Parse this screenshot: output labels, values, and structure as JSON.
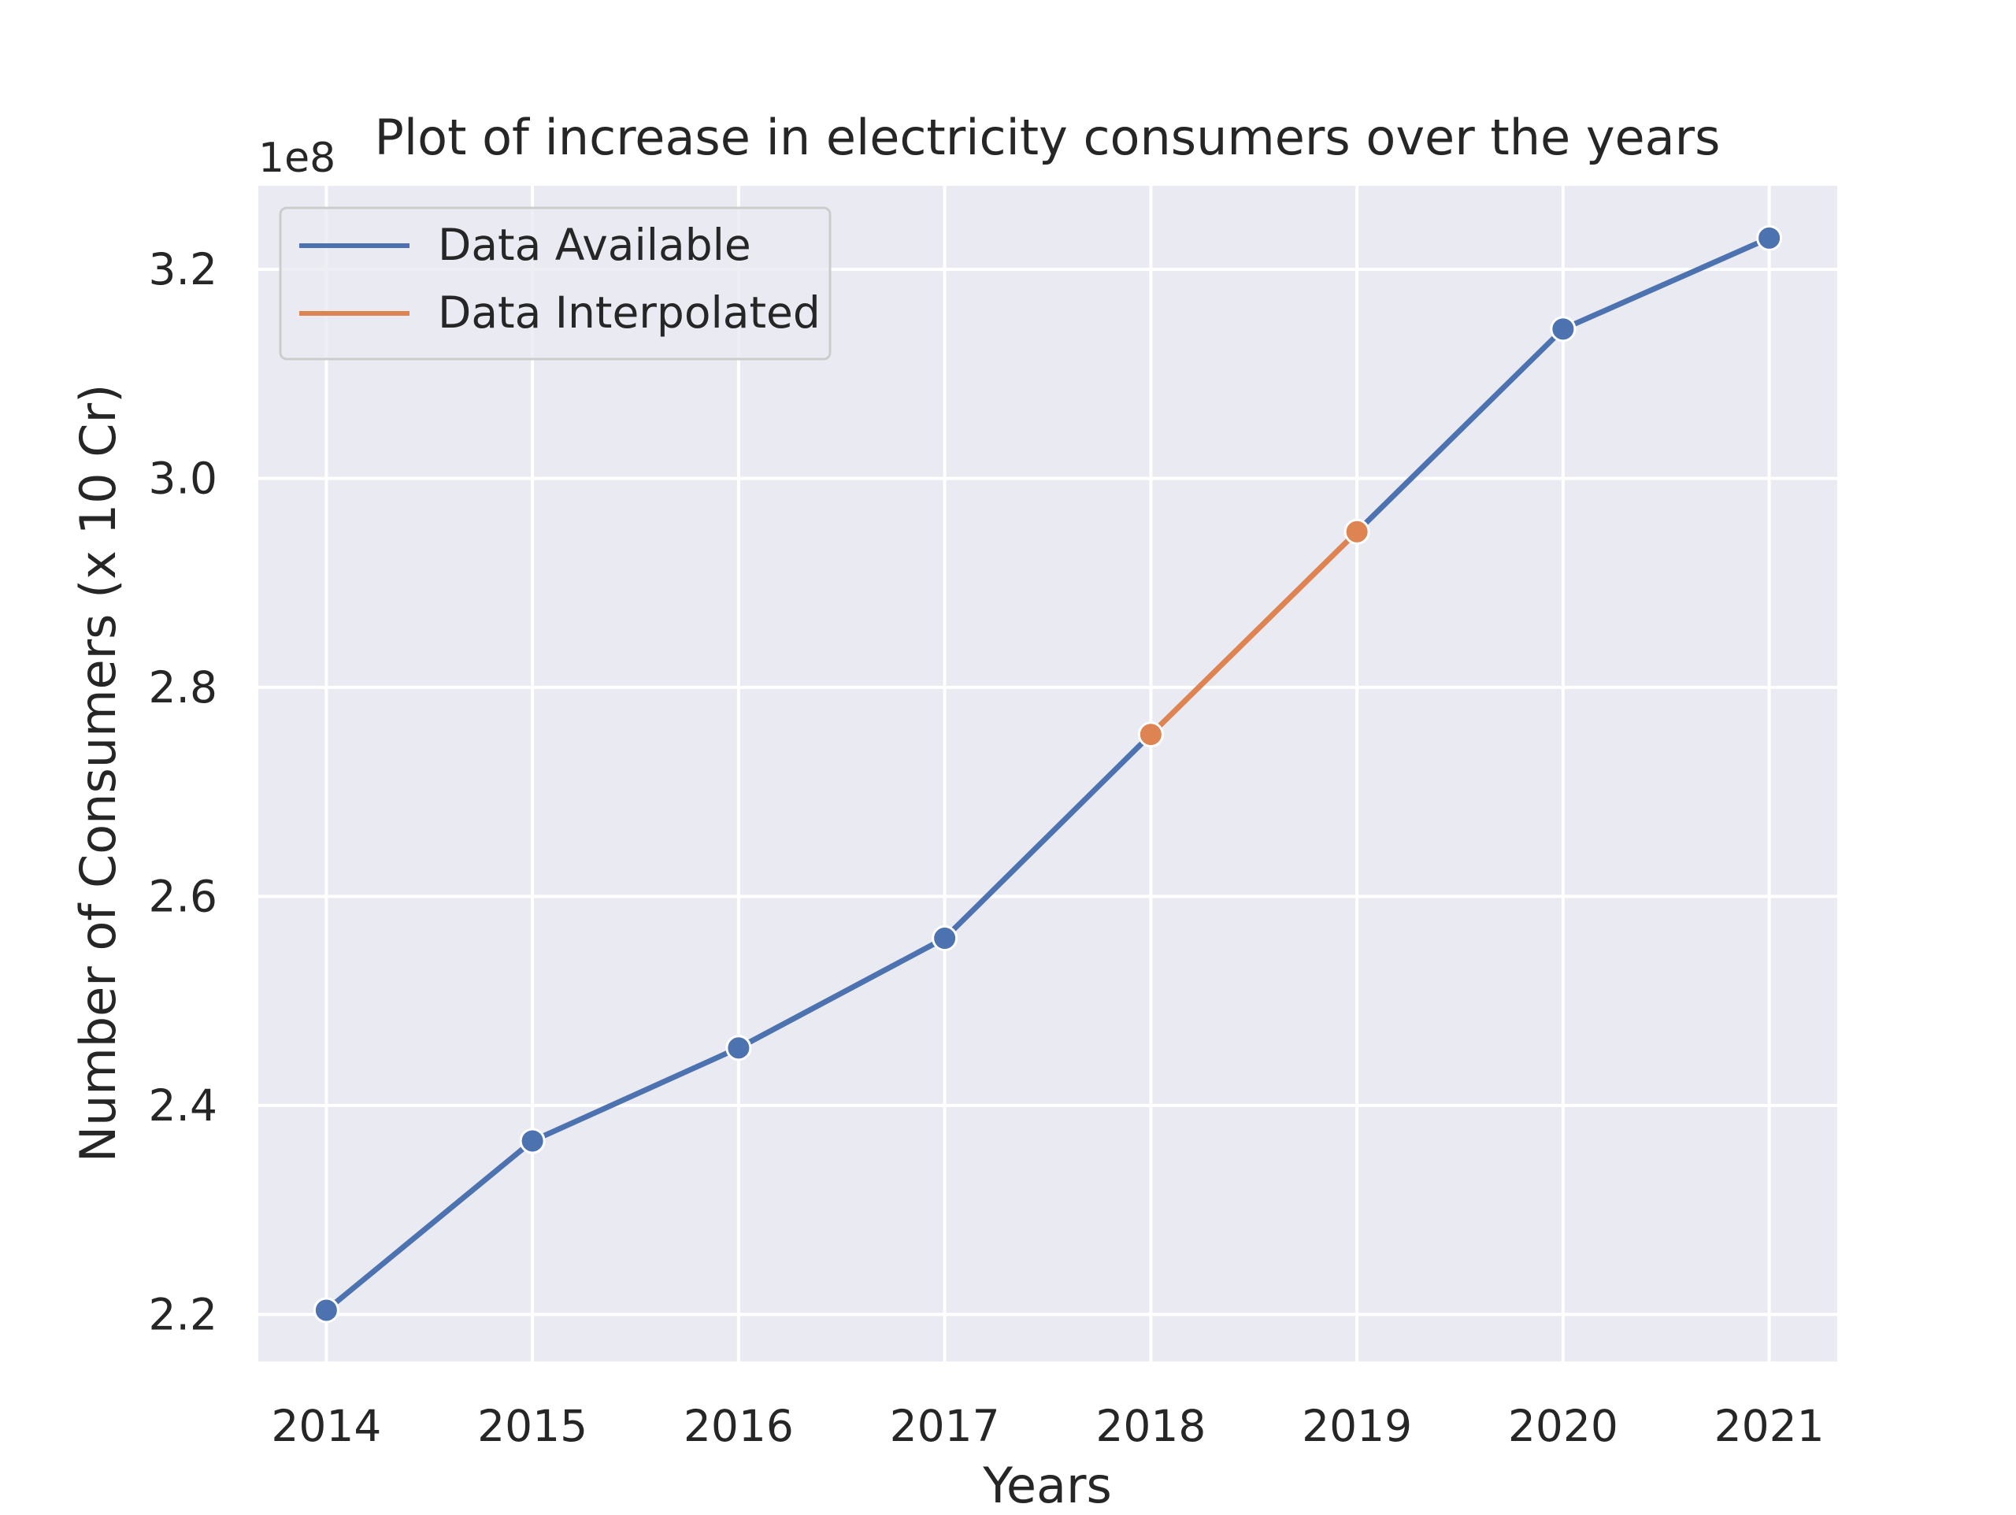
{
  "chart_data": {
    "type": "line",
    "title": "Plot of increase in electricity consumers over the years",
    "xlabel": "Years",
    "ylabel": "Number of Consumers (x 10 Cr)",
    "y_offset_text": "1e8",
    "x": [
      2014,
      2015,
      2016,
      2017,
      2018,
      2019,
      2020,
      2021
    ],
    "x_tick_labels": [
      "2014",
      "2015",
      "2016",
      "2017",
      "2018",
      "2019",
      "2020",
      "2021"
    ],
    "y_ticks": [
      2.2,
      2.4,
      2.6,
      2.8,
      3.0,
      3.2
    ],
    "y_tick_labels": [
      "2.2",
      "2.4",
      "2.6",
      "2.8",
      "3.0",
      "3.2"
    ],
    "ylim": [
      2.155,
      3.28
    ],
    "xlim": [
      2013.67,
      2021.33
    ],
    "grid": true,
    "legend_position": "top-left",
    "series": [
      {
        "name": "Data Available",
        "color": "#4C72B0",
        "segments": [
          {
            "x": [
              2014,
              2015,
              2016,
              2017,
              2018
            ],
            "y": [
              2.204,
              2.366,
              2.455,
              2.56,
              2.755
            ]
          },
          {
            "x": [
              2019,
              2020,
              2021
            ],
            "y": [
              2.949,
              3.143,
              3.23
            ]
          }
        ],
        "markers": {
          "x": [
            2014,
            2015,
            2016,
            2017,
            2020,
            2021
          ],
          "y": [
            2.204,
            2.366,
            2.455,
            2.56,
            3.143,
            3.23
          ]
        }
      },
      {
        "name": "Data Interpolated",
        "color": "#DD8452",
        "segments": [
          {
            "x": [
              2018,
              2019
            ],
            "y": [
              2.755,
              2.949
            ]
          }
        ],
        "markers": {
          "x": [
            2018,
            2019
          ],
          "y": [
            2.755,
            2.949
          ]
        }
      }
    ],
    "colors": {
      "plot_background": "#EAEAF2",
      "grid": "#FFFFFF",
      "text": "#262626"
    }
  }
}
